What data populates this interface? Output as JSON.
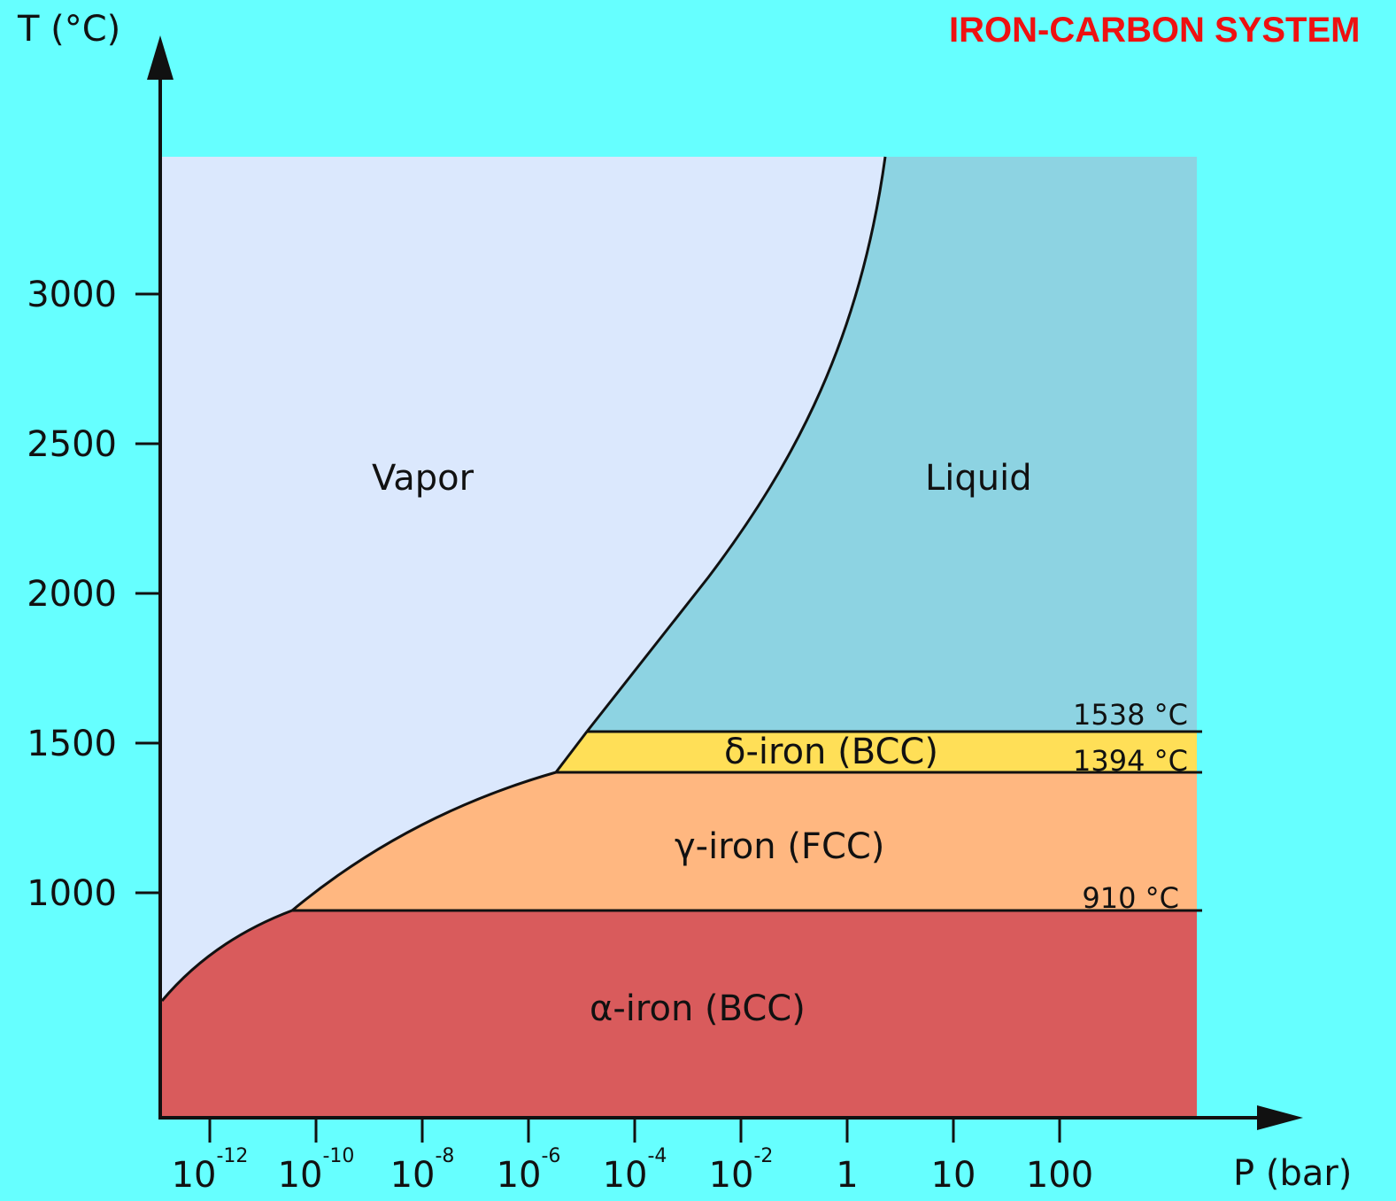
{
  "title": "IRON-CARBON SYSTEM",
  "y_axis": {
    "label": "T (°C)",
    "ticks": [
      "3000",
      "2500",
      "2000",
      "1500",
      "1000"
    ]
  },
  "x_axis": {
    "label": "P (bar)",
    "ticks": [
      {
        "base": "10",
        "exp": "-12"
      },
      {
        "base": "10",
        "exp": "-10"
      },
      {
        "base": "10",
        "exp": "-8"
      },
      {
        "base": "10",
        "exp": "-6"
      },
      {
        "base": "10",
        "exp": "-4"
      },
      {
        "base": "10",
        "exp": "-2"
      },
      {
        "base": "1"
      },
      {
        "base": "10"
      },
      {
        "base": "100"
      }
    ]
  },
  "regions": [
    "Vapor",
    "Liquid",
    "δ-iron (BCC)",
    "γ-iron (FCC)",
    "α-iron (BCC)"
  ],
  "boundaries": [
    "1538 °C",
    "1394 °C",
    "910 °C"
  ]
}
